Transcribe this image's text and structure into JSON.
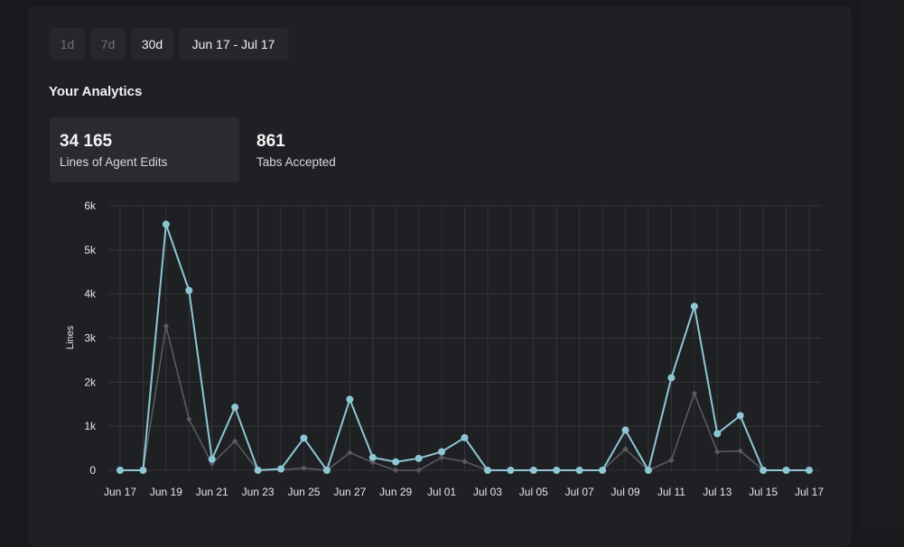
{
  "range_buttons": [
    {
      "label": "1d",
      "active": false
    },
    {
      "label": "7d",
      "active": false
    },
    {
      "label": "30d",
      "active": true
    },
    {
      "label": "Jun 17 - Jul 17",
      "active": true
    }
  ],
  "section_title": "Your Analytics",
  "stats": [
    {
      "value": "34 165",
      "label": "Lines of Agent Edits"
    },
    {
      "value": "861",
      "label": "Tabs Accepted"
    }
  ],
  "colors": {
    "primary_series": "#8ec6d6",
    "secondary_series": "#5a5a60",
    "grid": "#34353a",
    "background": "#1f2023"
  },
  "chart_data": {
    "type": "line",
    "ylabel": "Lines",
    "xlabel": "",
    "ylim": [
      0,
      6000
    ],
    "y_ticks": [
      0,
      1000,
      2000,
      3000,
      4000,
      5000,
      6000
    ],
    "y_tick_labels": [
      "0",
      "1k",
      "2k",
      "3k",
      "4k",
      "5k",
      "6k"
    ],
    "x_tick_labels": [
      "Jun 17",
      "Jun 19",
      "Jun 21",
      "Jun 23",
      "Jun 25",
      "Jun 27",
      "Jun 29",
      "Jul 01",
      "Jul 03",
      "Jul 05",
      "Jul 07",
      "Jul 09",
      "Jul 11",
      "Jul 13",
      "Jul 15",
      "Jul 17"
    ],
    "grid": true,
    "categories": [
      "Jun 17",
      "Jun 18",
      "Jun 19",
      "Jun 20",
      "Jun 21",
      "Jun 22",
      "Jun 23",
      "Jun 24",
      "Jun 25",
      "Jun 26",
      "Jun 27",
      "Jun 28",
      "Jun 29",
      "Jun 30",
      "Jul 01",
      "Jul 02",
      "Jul 03",
      "Jul 04",
      "Jul 05",
      "Jul 06",
      "Jul 07",
      "Jul 08",
      "Jul 09",
      "Jul 10",
      "Jul 11",
      "Jul 12",
      "Jul 13",
      "Jul 14",
      "Jul 15",
      "Jul 16",
      "Jul 17"
    ],
    "series": [
      {
        "values": [
          0,
          0,
          5580,
          4080,
          250,
          1430,
          0,
          30,
          730,
          0,
          1610,
          290,
          190,
          270,
          420,
          740,
          0,
          0,
          0,
          0,
          0,
          0,
          910,
          0,
          2100,
          3720,
          830,
          1240,
          0,
          0,
          0
        ]
      },
      {
        "values": [
          0,
          0,
          3270,
          1160,
          150,
          660,
          0,
          10,
          50,
          0,
          400,
          180,
          0,
          0,
          290,
          200,
          0,
          0,
          0,
          0,
          0,
          0,
          480,
          0,
          230,
          1740,
          420,
          440,
          0,
          0,
          0
        ]
      }
    ]
  }
}
